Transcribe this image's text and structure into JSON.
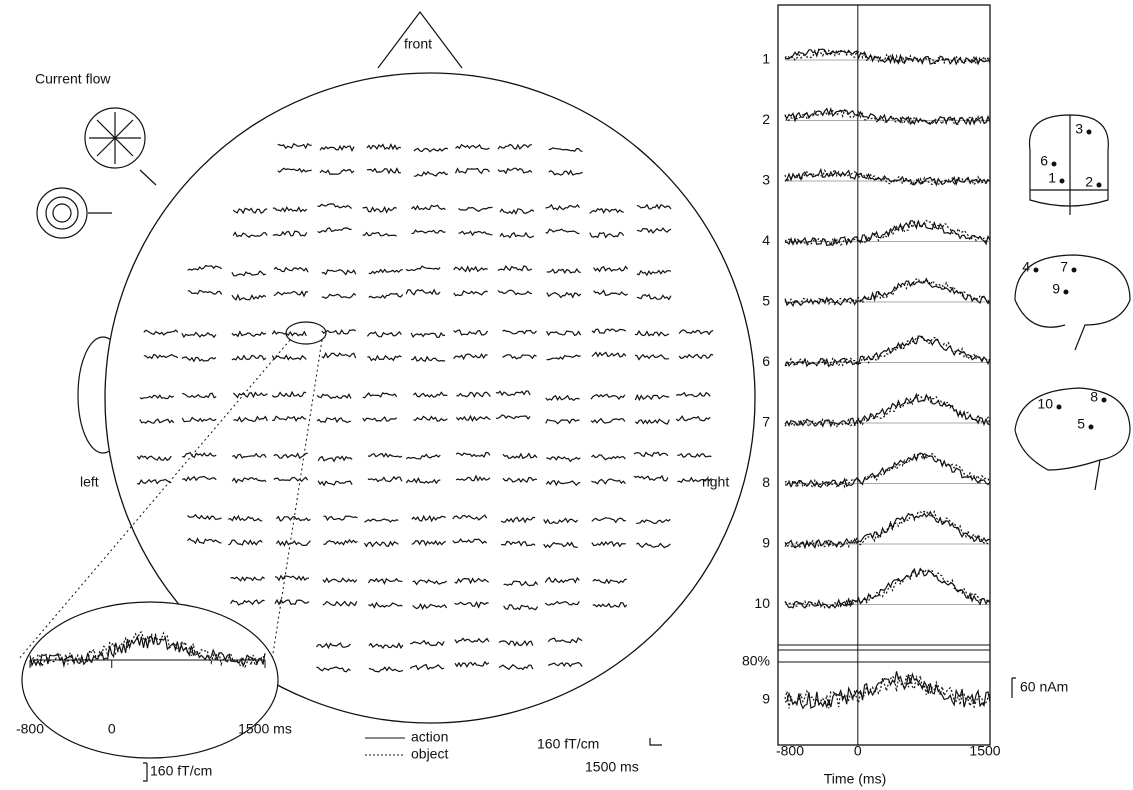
{
  "head_map": {
    "front": "front",
    "left": "left",
    "right": "right",
    "current_flow": "Current flow",
    "scale": {
      "amplitude": "160 fT/cm",
      "time": "1500 ms"
    }
  },
  "inset": {
    "xlim": [
      -800,
      1500
    ],
    "xticks": [
      {
        "value": -800,
        "label": "-800"
      },
      0,
      {
        "value": 1500,
        "label": "1500 ms"
      }
    ],
    "scale": "160 fT/cm"
  },
  "legend": [
    {
      "name": "action",
      "style": "solid"
    },
    {
      "name": "object",
      "style": "dotted"
    }
  ],
  "source_panel": {
    "xlabel": "Time (ms)",
    "xlim": [
      -800,
      1500
    ],
    "xticks": [
      -800,
      0,
      1500
    ],
    "rows": [
      "1",
      "2",
      "3",
      "4",
      "5",
      "6",
      "7",
      "8",
      "9",
      "10"
    ],
    "bottom_row": {
      "label": "9",
      "level": "80%"
    },
    "scale": "60 nAm"
  },
  "brains": {
    "coronal": [
      "3",
      "6",
      "1",
      "2"
    ],
    "sagittal": [
      "4",
      "7",
      "9"
    ],
    "lateral": [
      "10",
      "8",
      "5"
    ]
  }
}
